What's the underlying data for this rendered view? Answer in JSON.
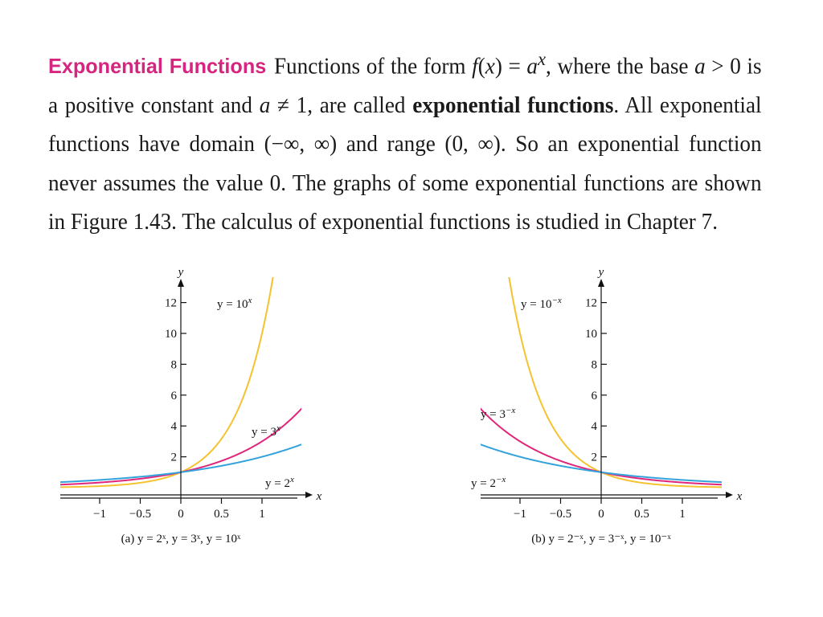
{
  "paragraph": {
    "heading": "Exponential Functions",
    "t1": "Functions of the form ",
    "fx": "f",
    "t2": "(",
    "x1": "x",
    "t3": ") = ",
    "a1": "a",
    "sup_x": "x",
    "t4": ", where the base ",
    "a2": "a",
    "t5": " > 0 is a positive constant and ",
    "a3": "a",
    "t6": " ≠ 1, are called ",
    "bold": "exponential functions",
    "t7": ". All exponential functions have domain (−∞, ∞) and range (0, ∞). So an exponential function never assumes the value 0. The graphs of some exponential functions are shown in Figure 1.43. The calculus of exponential functions is studied in Chapter 7."
  },
  "colors": {
    "yellow": "#f5c230",
    "magenta": "#e0267a",
    "blue": "#34a3dc",
    "axis": "#111111",
    "heading": "#d6257f"
  },
  "chart_data": [
    {
      "type": "line",
      "caption": "(a) y = 2ˣ, y = 3ˣ, y = 10ˣ",
      "xlabel": "x",
      "ylabel": "y",
      "xlim": [
        -1.5,
        1.5
      ],
      "ylim": [
        0,
        13.5
      ],
      "xticks": [
        -1,
        -0.5,
        0,
        0.5,
        1
      ],
      "xtick_labels": [
        "−1",
        "−0.5",
        "0",
        "0.5",
        "1"
      ],
      "yticks": [
        2,
        4,
        6,
        8,
        10,
        12
      ],
      "ytick_labels": [
        "2",
        "4",
        "6",
        "8",
        "10",
        "12"
      ],
      "legend": "none",
      "grid": false,
      "series": [
        {
          "name": "y = 10ˣ",
          "base": 10,
          "sign": 1,
          "color": "yellow",
          "points": [
            [
              -1.5,
              0.03
            ],
            [
              -1,
              0.1
            ],
            [
              -0.5,
              0.32
            ],
            [
              0,
              1
            ],
            [
              0.5,
              3.16
            ],
            [
              1,
              10
            ],
            [
              1.13,
              13.5
            ]
          ]
        },
        {
          "name": "y = 3ˣ",
          "base": 3,
          "sign": 1,
          "color": "magenta",
          "points": [
            [
              -1.5,
              0.19
            ],
            [
              -1,
              0.33
            ],
            [
              -0.5,
              0.58
            ],
            [
              0,
              1
            ],
            [
              0.5,
              1.73
            ],
            [
              1,
              3
            ],
            [
              1.5,
              5.2
            ]
          ]
        },
        {
          "name": "y = 2ˣ",
          "base": 2,
          "sign": 1,
          "color": "blue",
          "points": [
            [
              -1.5,
              0.35
            ],
            [
              -1,
              0.5
            ],
            [
              -0.5,
              0.71
            ],
            [
              0,
              1
            ],
            [
              0.5,
              1.41
            ],
            [
              1,
              2
            ],
            [
              1.5,
              2.83
            ]
          ]
        }
      ]
    },
    {
      "type": "line",
      "caption": "(b) y = 2⁻ˣ, y = 3⁻ˣ, y = 10⁻ˣ",
      "xlabel": "x",
      "ylabel": "y",
      "xlim": [
        -1.5,
        1.5
      ],
      "ylim": [
        0,
        13.5
      ],
      "xticks": [
        -1,
        -0.5,
        0,
        0.5,
        1
      ],
      "xtick_labels": [
        "−1",
        "−0.5",
        "0",
        "0.5",
        "1"
      ],
      "yticks": [
        2,
        4,
        6,
        8,
        10,
        12
      ],
      "ytick_labels": [
        "2",
        "4",
        "6",
        "8",
        "10",
        "12"
      ],
      "legend": "none",
      "grid": false,
      "series": [
        {
          "name": "y = 10⁻ˣ",
          "base": 10,
          "sign": -1,
          "color": "yellow",
          "points": [
            [
              -1.13,
              13.5
            ],
            [
              -1,
              10
            ],
            [
              -0.5,
              3.16
            ],
            [
              0,
              1
            ],
            [
              0.5,
              0.32
            ],
            [
              1,
              0.1
            ],
            [
              1.5,
              0.03
            ]
          ]
        },
        {
          "name": "y = 3⁻ˣ",
          "base": 3,
          "sign": -1,
          "color": "magenta",
          "points": [
            [
              -1.5,
              5.2
            ],
            [
              -1,
              3
            ],
            [
              -0.5,
              1.73
            ],
            [
              0,
              1
            ],
            [
              0.5,
              0.58
            ],
            [
              1,
              0.33
            ],
            [
              1.5,
              0.19
            ]
          ]
        },
        {
          "name": "y = 2⁻ˣ",
          "base": 2,
          "sign": -1,
          "color": "blue",
          "points": [
            [
              -1.5,
              2.83
            ],
            [
              -1,
              2
            ],
            [
              -0.5,
              1.41
            ],
            [
              0,
              1
            ],
            [
              0.5,
              0.71
            ],
            [
              1,
              0.5
            ],
            [
              1.5,
              0.35
            ]
          ]
        }
      ]
    }
  ]
}
